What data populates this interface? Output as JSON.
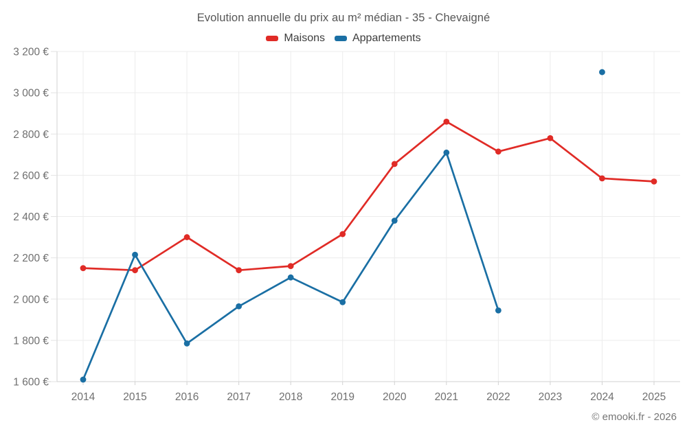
{
  "title": "Evolution annuelle du prix au m² médian - 35 - Chevaigné",
  "footer": "© emooki.fr - 2026",
  "colors": {
    "maisons": "#e02b26",
    "appartements": "#1a6fa4",
    "grid": "#ececec",
    "axis": "#d2d2d2",
    "tick_label": "#6f6f6f"
  },
  "legend": [
    {
      "label": "Maisons",
      "color": "#e02b26"
    },
    {
      "label": "Appartements",
      "color": "#1a6fa4"
    }
  ],
  "chart_data": {
    "type": "line",
    "title": "Evolution annuelle du prix au m² médian - 35 - Chevaigné",
    "xlabel": "",
    "ylabel": "",
    "categories": [
      "2014",
      "2015",
      "2016",
      "2017",
      "2018",
      "2019",
      "2020",
      "2021",
      "2022",
      "2023",
      "2024",
      "2025"
    ],
    "series": [
      {
        "name": "Maisons",
        "color": "#e02b26",
        "values": [
          2150,
          2140,
          2300,
          2140,
          2160,
          2315,
          2655,
          2860,
          2715,
          2780,
          2585,
          2570
        ]
      },
      {
        "name": "Appartements",
        "color": "#1a6fa4",
        "values": [
          1610,
          2215,
          1785,
          1965,
          2105,
          1985,
          2380,
          2710,
          1945,
          null,
          3100,
          null
        ]
      }
    ],
    "ylim": [
      1600,
      3200
    ],
    "ytick_step": 200,
    "ytick_labels": [
      "1 600 €",
      "1 800 €",
      "2 000 €",
      "2 200 €",
      "2 400 €",
      "2 600 €",
      "2 800 €",
      "3 000 €",
      "3 200 €"
    ],
    "grid": true,
    "legend_position": "top",
    "currency": "€"
  }
}
